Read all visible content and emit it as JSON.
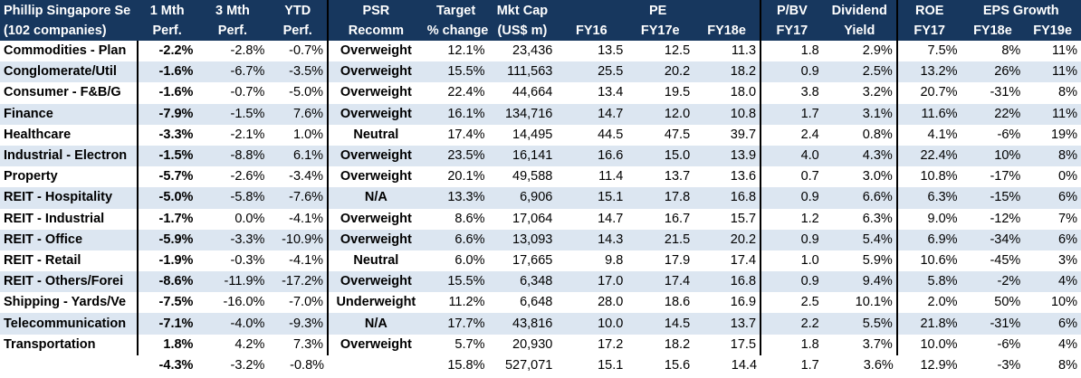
{
  "header": {
    "row1": {
      "universe": "Phillip Singapore Se",
      "m1": "1 Mth",
      "m3": "3 Mth",
      "ytd": "YTD",
      "psr": "PSR",
      "target": "Target",
      "mktcap": "Mkt Cap",
      "pe": "PE",
      "pbv": "P/BV",
      "div": "Dividend",
      "roe": "ROE",
      "eps": "EPS Growth"
    },
    "row2": {
      "universe": "(102 companies)",
      "m1": "Perf.",
      "m3": "Perf.",
      "ytd": "Perf.",
      "psr": "Recomm",
      "target": "% change",
      "mktcap": "(US$ m)",
      "pe16": "FY16",
      "pe17": "FY17e",
      "pe18": "FY18e",
      "pbv": "FY17",
      "div": "Yield",
      "roe": "FY17",
      "eps18": "FY18e",
      "eps19": "FY19e"
    }
  },
  "rows": [
    {
      "sector": "Commodities - Plan",
      "m1": "-2.2%",
      "m3": "-2.8%",
      "ytd": "-0.7%",
      "psr": "Overweight",
      "target": "12.1%",
      "mktcap": "23,436",
      "pe16": "13.5",
      "pe17": "12.5",
      "pe18": "11.3",
      "pbv": "1.8",
      "div": "2.9%",
      "roe": "7.5%",
      "eps18": "8%",
      "eps19": "11%"
    },
    {
      "sector": "Conglomerate/Util",
      "m1": "-1.6%",
      "m3": "-6.7%",
      "ytd": "-3.5%",
      "psr": "Overweight",
      "target": "15.5%",
      "mktcap": "111,563",
      "pe16": "25.5",
      "pe17": "20.2",
      "pe18": "18.2",
      "pbv": "0.9",
      "div": "2.5%",
      "roe": "13.2%",
      "eps18": "26%",
      "eps19": "11%"
    },
    {
      "sector": "Consumer - F&B/G",
      "m1": "-1.6%",
      "m3": "-0.7%",
      "ytd": "-5.0%",
      "psr": "Overweight",
      "target": "22.4%",
      "mktcap": "44,664",
      "pe16": "13.4",
      "pe17": "19.5",
      "pe18": "18.0",
      "pbv": "3.8",
      "div": "3.2%",
      "roe": "20.7%",
      "eps18": "-31%",
      "eps19": "8%"
    },
    {
      "sector": "Finance",
      "m1": "-7.9%",
      "m3": "-1.5%",
      "ytd": "7.6%",
      "psr": "Overweight",
      "target": "16.1%",
      "mktcap": "134,716",
      "pe16": "14.7",
      "pe17": "12.0",
      "pe18": "10.8",
      "pbv": "1.7",
      "div": "3.1%",
      "roe": "11.6%",
      "eps18": "22%",
      "eps19": "11%"
    },
    {
      "sector": "Healthcare",
      "m1": "-3.3%",
      "m3": "-2.1%",
      "ytd": "1.0%",
      "psr": "Neutral",
      "target": "17.4%",
      "mktcap": "14,495",
      "pe16": "44.5",
      "pe17": "47.5",
      "pe18": "39.7",
      "pbv": "2.4",
      "div": "0.8%",
      "roe": "4.1%",
      "eps18": "-6%",
      "eps19": "19%"
    },
    {
      "sector": "Industrial - Electron",
      "m1": "-1.5%",
      "m3": "-8.8%",
      "ytd": "6.1%",
      "psr": "Overweight",
      "target": "23.5%",
      "mktcap": "16,141",
      "pe16": "16.6",
      "pe17": "15.0",
      "pe18": "13.9",
      "pbv": "4.0",
      "div": "4.3%",
      "roe": "22.4%",
      "eps18": "10%",
      "eps19": "8%"
    },
    {
      "sector": "Property",
      "m1": "-5.7%",
      "m3": "-2.6%",
      "ytd": "-3.4%",
      "psr": "Overweight",
      "target": "20.1%",
      "mktcap": "49,588",
      "pe16": "11.4",
      "pe17": "13.7",
      "pe18": "13.6",
      "pbv": "0.7",
      "div": "3.0%",
      "roe": "10.8%",
      "eps18": "-17%",
      "eps19": "0%"
    },
    {
      "sector": "REIT - Hospitality",
      "m1": "-5.0%",
      "m3": "-5.8%",
      "ytd": "-7.6%",
      "psr": "N/A",
      "target": "13.3%",
      "mktcap": "6,906",
      "pe16": "15.1",
      "pe17": "17.8",
      "pe18": "16.8",
      "pbv": "0.9",
      "div": "6.6%",
      "roe": "6.3%",
      "eps18": "-15%",
      "eps19": "6%"
    },
    {
      "sector": "REIT - Industrial",
      "m1": "-1.7%",
      "m3": "0.0%",
      "ytd": "-4.1%",
      "psr": "Overweight",
      "target": "8.6%",
      "mktcap": "17,064",
      "pe16": "14.7",
      "pe17": "16.7",
      "pe18": "15.7",
      "pbv": "1.2",
      "div": "6.3%",
      "roe": "9.0%",
      "eps18": "-12%",
      "eps19": "7%"
    },
    {
      "sector": "REIT - Office",
      "m1": "-5.9%",
      "m3": "-3.3%",
      "ytd": "-10.9%",
      "psr": "Overweight",
      "target": "6.6%",
      "mktcap": "13,093",
      "pe16": "14.3",
      "pe17": "21.5",
      "pe18": "20.2",
      "pbv": "0.9",
      "div": "5.4%",
      "roe": "6.9%",
      "eps18": "-34%",
      "eps19": "6%"
    },
    {
      "sector": "REIT - Retail",
      "m1": "-1.9%",
      "m3": "-0.3%",
      "ytd": "-4.1%",
      "psr": "Neutral",
      "target": "6.0%",
      "mktcap": "17,665",
      "pe16": "9.8",
      "pe17": "17.9",
      "pe18": "17.4",
      "pbv": "1.0",
      "div": "5.9%",
      "roe": "10.6%",
      "eps18": "-45%",
      "eps19": "3%"
    },
    {
      "sector": "REIT - Others/Forei",
      "m1": "-8.6%",
      "m3": "-11.9%",
      "ytd": "-17.2%",
      "psr": "Overweight",
      "target": "15.5%",
      "mktcap": "6,348",
      "pe16": "17.0",
      "pe17": "17.4",
      "pe18": "16.8",
      "pbv": "0.9",
      "div": "9.4%",
      "roe": "5.8%",
      "eps18": "-2%",
      "eps19": "4%"
    },
    {
      "sector": "Shipping - Yards/Ve",
      "m1": "-7.5%",
      "m3": "-16.0%",
      "ytd": "-7.0%",
      "psr": "Underweight",
      "target": "11.2%",
      "mktcap": "6,648",
      "pe16": "28.0",
      "pe17": "18.6",
      "pe18": "16.9",
      "pbv": "2.5",
      "div": "10.1%",
      "roe": "2.0%",
      "eps18": "50%",
      "eps19": "10%"
    },
    {
      "sector": "Telecommunication",
      "m1": "-7.1%",
      "m3": "-4.0%",
      "ytd": "-9.3%",
      "psr": "N/A",
      "target": "17.7%",
      "mktcap": "43,816",
      "pe16": "10.0",
      "pe17": "14.5",
      "pe18": "13.7",
      "pbv": "2.2",
      "div": "5.5%",
      "roe": "21.8%",
      "eps18": "-31%",
      "eps19": "6%"
    },
    {
      "sector": "Transportation",
      "m1": "1.8%",
      "m3": "4.2%",
      "ytd": "7.3%",
      "psr": "Overweight",
      "target": "5.7%",
      "mktcap": "20,930",
      "pe16": "17.2",
      "pe17": "18.2",
      "pe18": "17.5",
      "pbv": "1.8",
      "div": "3.7%",
      "roe": "10.0%",
      "eps18": "-6%",
      "eps19": "4%"
    }
  ],
  "total": {
    "m1": "-4.3%",
    "m3": "-3.2%",
    "ytd": "-0.8%",
    "target": "15.8%",
    "mktcap": "527,071",
    "pe16": "15.1",
    "pe17": "15.6",
    "pe18": "14.4",
    "pbv": "1.7",
    "div": "3.6%",
    "roe": "12.9%",
    "eps18": "-3%",
    "eps19": "8%"
  },
  "colors": {
    "header_bg": "#17375e",
    "band_bg": "#dce6f1",
    "text": "#000000"
  }
}
